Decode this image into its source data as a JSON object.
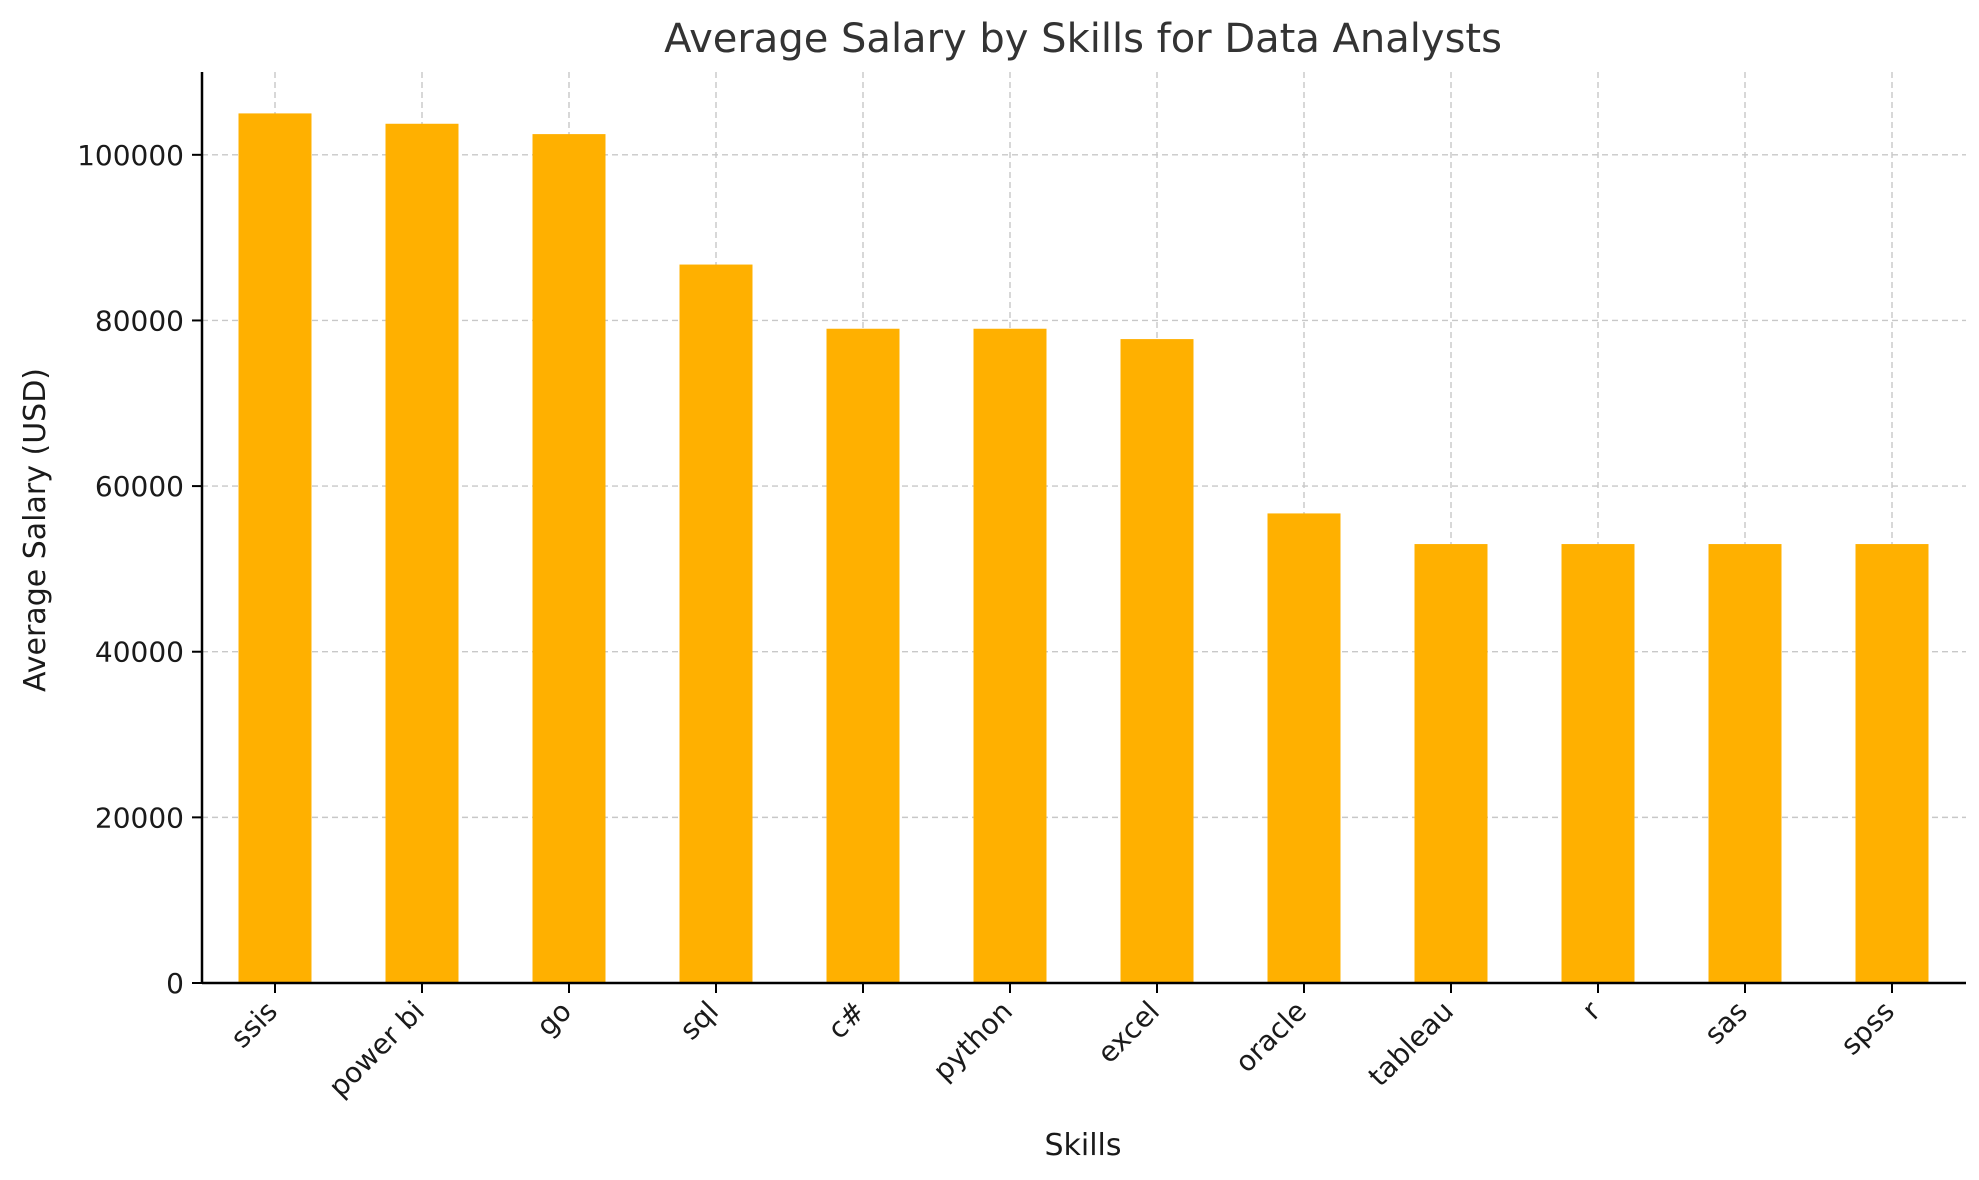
{
  "chart_data": {
    "type": "bar",
    "title": "Average Salary by Skills for Data Analysts",
    "xlabel": "Skills",
    "ylabel": "Average Salary (USD)",
    "categories": [
      "ssis",
      "power bi",
      "go",
      "sql",
      "c#",
      "python",
      "excel",
      "oracle",
      "tableau",
      "r",
      "sas",
      "spss"
    ],
    "values": [
      105000,
      103750,
      102500,
      86750,
      79000,
      79000,
      77750,
      56700,
      53000,
      53000,
      53000,
      53000
    ],
    "ylim": [
      0,
      110000
    ],
    "yticks": [
      0,
      20000,
      40000,
      60000,
      80000,
      100000
    ],
    "grid": true,
    "bar_color": "#FFB000"
  }
}
